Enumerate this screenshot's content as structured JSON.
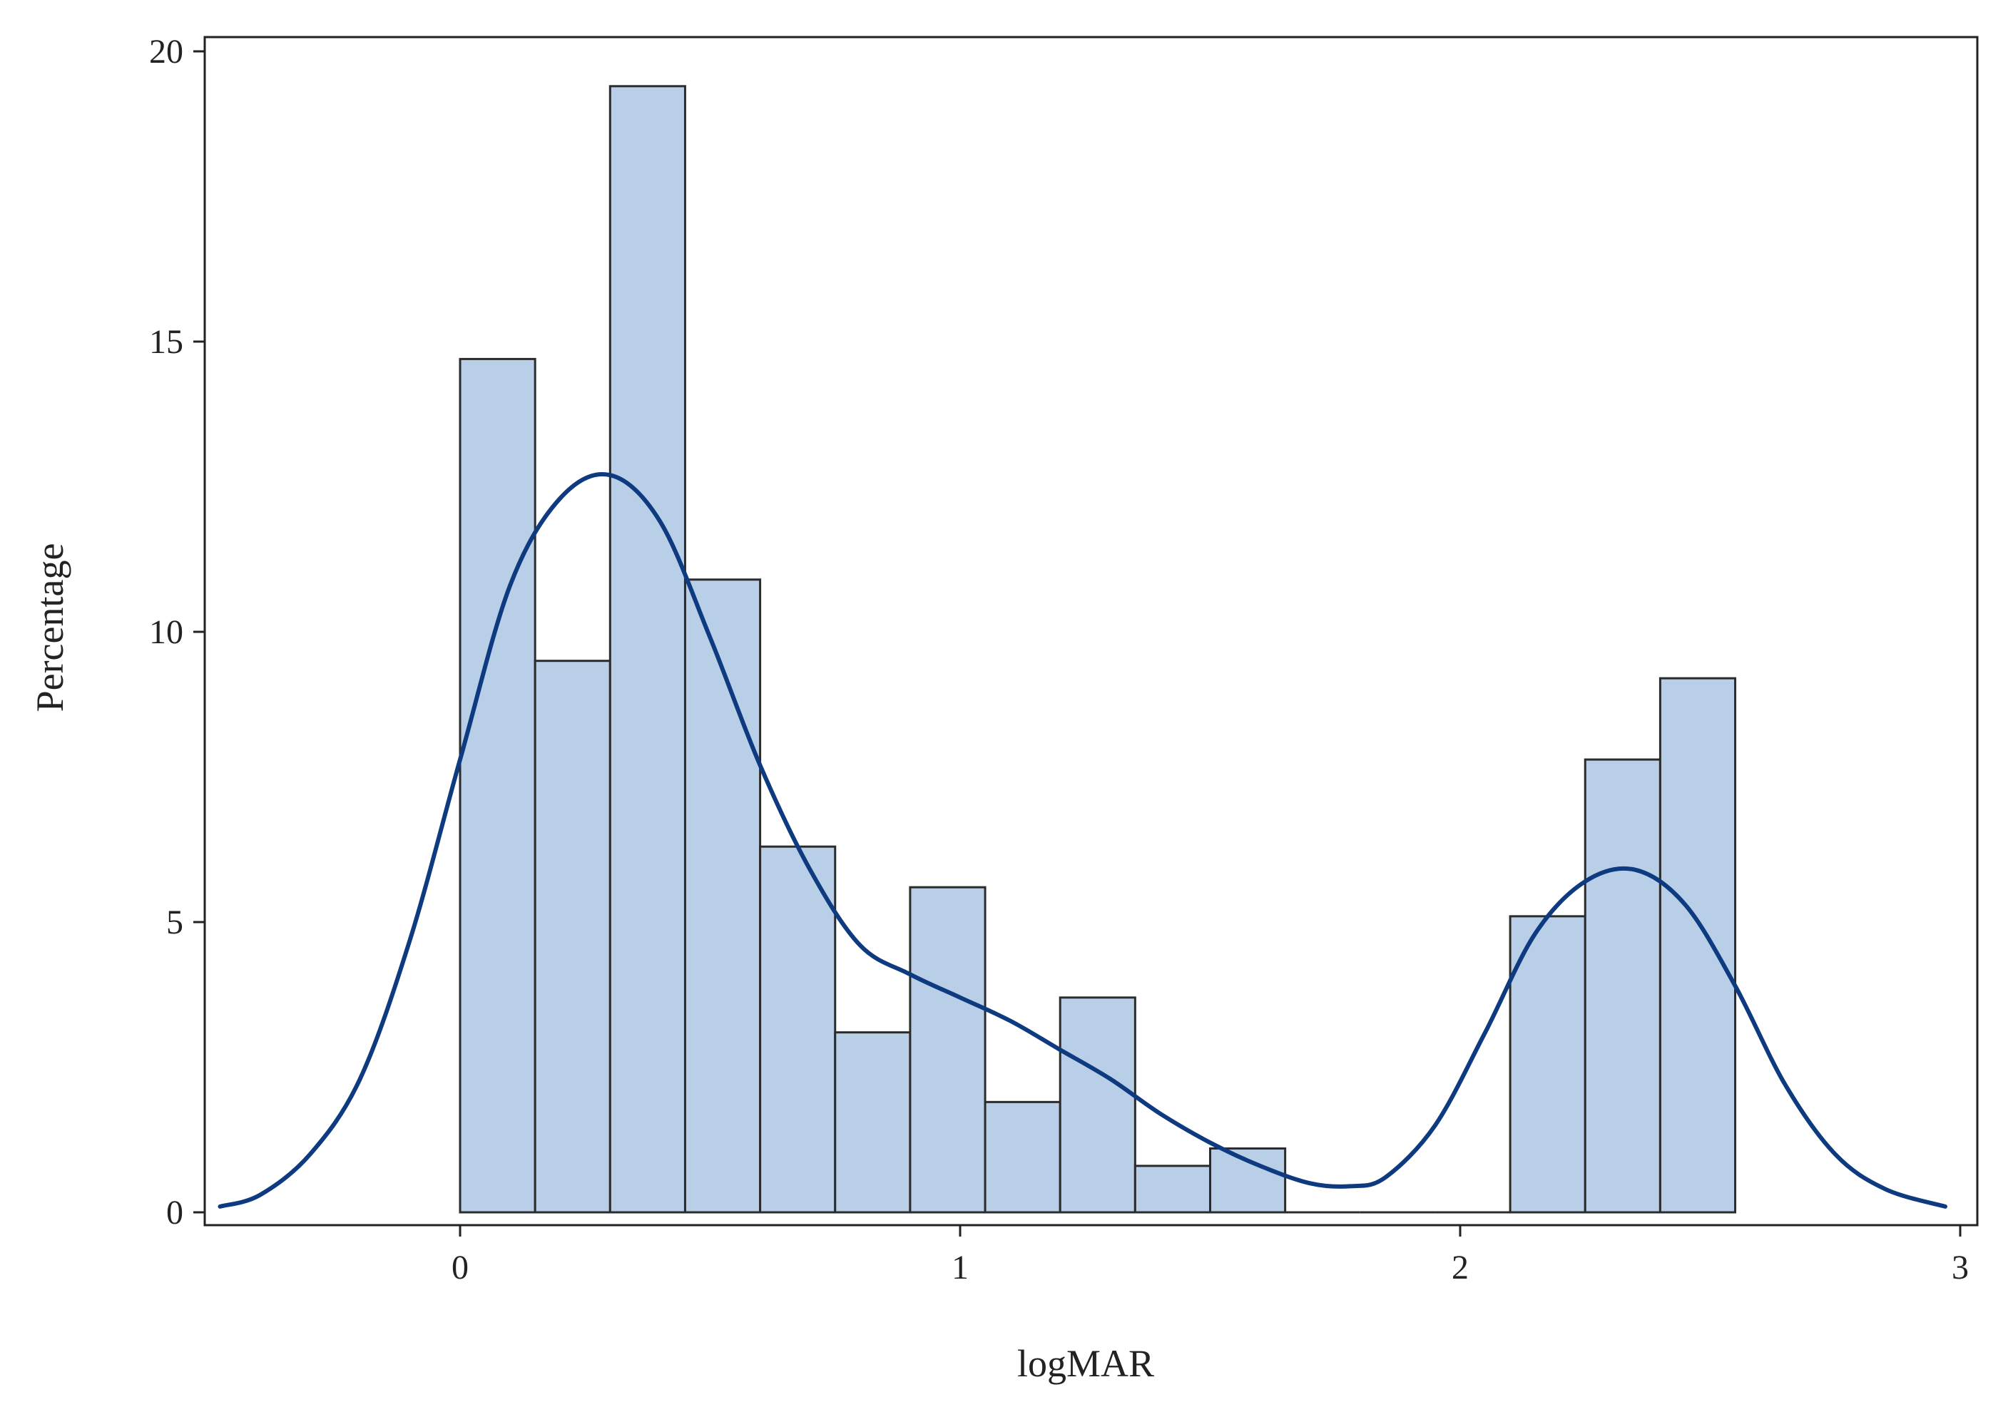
{
  "chart_data": {
    "type": "bar",
    "subtype": "histogram-with-kernel-density",
    "title": "",
    "xlabel": "logMAR",
    "ylabel": "Percentage",
    "xlim": [
      -0.5,
      3.0
    ],
    "ylim": [
      0,
      20
    ],
    "grid": false,
    "x_ticks": [
      "0",
      "1",
      "2",
      "3"
    ],
    "x_tick_values": [
      0,
      1,
      2,
      3
    ],
    "y_ticks": [
      "0",
      "5",
      "10",
      "15",
      "20"
    ],
    "y_tick_values": [
      0,
      5,
      10,
      15,
      20
    ],
    "bin_width": 0.15,
    "bins": [
      {
        "start": 0.0,
        "end": 0.15,
        "value": 14.7
      },
      {
        "start": 0.15,
        "end": 0.3,
        "value": 9.5
      },
      {
        "start": 0.3,
        "end": 0.45,
        "value": 19.4
      },
      {
        "start": 0.45,
        "end": 0.6,
        "value": 10.9
      },
      {
        "start": 0.6,
        "end": 0.75,
        "value": 6.3
      },
      {
        "start": 0.75,
        "end": 0.9,
        "value": 3.1
      },
      {
        "start": 0.9,
        "end": 1.05,
        "value": 5.6
      },
      {
        "start": 1.05,
        "end": 1.2,
        "value": 1.9
      },
      {
        "start": 1.2,
        "end": 1.35,
        "value": 3.7
      },
      {
        "start": 1.35,
        "end": 1.5,
        "value": 0.8
      },
      {
        "start": 1.5,
        "end": 1.65,
        "value": 1.1
      },
      {
        "start": 1.65,
        "end": 1.8,
        "value": 0
      },
      {
        "start": 1.8,
        "end": 1.95,
        "value": 0
      },
      {
        "start": 1.95,
        "end": 2.1,
        "value": 0
      },
      {
        "start": 2.1,
        "end": 2.25,
        "value": 5.1
      },
      {
        "start": 2.25,
        "end": 2.4,
        "value": 7.8
      },
      {
        "start": 2.4,
        "end": 2.55,
        "value": 9.2
      }
    ],
    "density_curve": {
      "name": "Kernel density",
      "x": [
        -0.48,
        -0.4,
        -0.3,
        -0.2,
        -0.1,
        0.0,
        0.1,
        0.2,
        0.3,
        0.4,
        0.5,
        0.6,
        0.7,
        0.8,
        0.9,
        1.0,
        1.1,
        1.2,
        1.3,
        1.4,
        1.5,
        1.6,
        1.7,
        1.78,
        1.85,
        1.95,
        2.05,
        2.15,
        2.25,
        2.35,
        2.45,
        2.55,
        2.65,
        2.75,
        2.85,
        2.97
      ],
      "y": [
        0.1,
        0.3,
        1.0,
        2.3,
        4.7,
        7.8,
        10.8,
        12.3,
        12.7,
        11.9,
        9.9,
        7.7,
        5.9,
        4.6,
        4.1,
        3.7,
        3.3,
        2.8,
        2.3,
        1.7,
        1.2,
        0.8,
        0.5,
        0.45,
        0.6,
        1.5,
        3.1,
        4.8,
        5.7,
        5.9,
        5.3,
        3.9,
        2.2,
        1.0,
        0.4,
        0.1
      ]
    },
    "colors": {
      "bar_fill": "#b9cfe8",
      "bar_stroke": "#2b2b2b",
      "curve": "#0e3a80",
      "axis": "#222222"
    }
  }
}
